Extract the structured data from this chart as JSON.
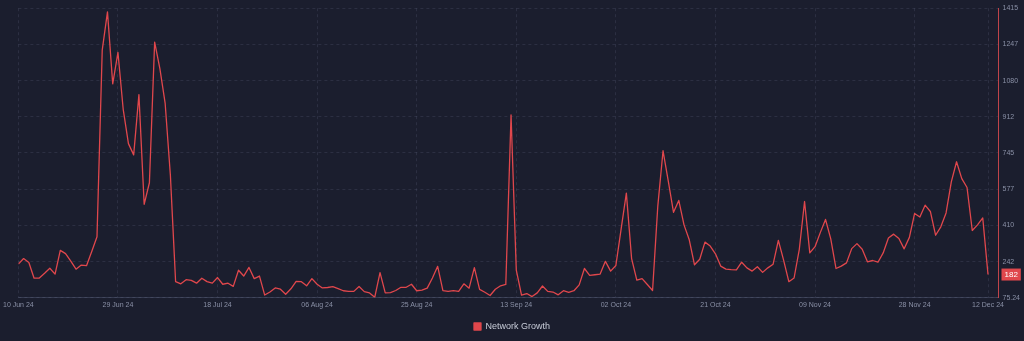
{
  "chart_data": {
    "type": "line",
    "x": [
      "2024-06-10",
      "2024-06-11",
      "2024-06-12",
      "2024-06-13",
      "2024-06-14",
      "2024-06-15",
      "2024-06-16",
      "2024-06-17",
      "2024-06-18",
      "2024-06-19",
      "2024-06-20",
      "2024-06-21",
      "2024-06-22",
      "2024-06-23",
      "2024-06-24",
      "2024-06-25",
      "2024-06-26",
      "2024-06-27",
      "2024-06-28",
      "2024-06-29",
      "2024-06-30",
      "2024-07-01",
      "2024-07-02",
      "2024-07-03",
      "2024-07-04",
      "2024-07-05",
      "2024-07-06",
      "2024-07-07",
      "2024-07-08",
      "2024-07-09",
      "2024-07-10",
      "2024-07-11",
      "2024-07-12",
      "2024-07-13",
      "2024-07-14",
      "2024-07-15",
      "2024-07-16",
      "2024-07-17",
      "2024-07-18",
      "2024-07-19",
      "2024-07-20",
      "2024-07-21",
      "2024-07-22",
      "2024-07-23",
      "2024-07-24",
      "2024-07-25",
      "2024-07-26",
      "2024-07-27",
      "2024-07-28",
      "2024-07-29",
      "2024-07-30",
      "2024-07-31",
      "2024-08-01",
      "2024-08-02",
      "2024-08-03",
      "2024-08-04",
      "2024-08-05",
      "2024-08-06",
      "2024-08-07",
      "2024-08-08",
      "2024-08-09",
      "2024-08-10",
      "2024-08-11",
      "2024-08-12",
      "2024-08-13",
      "2024-08-14",
      "2024-08-15",
      "2024-08-16",
      "2024-08-17",
      "2024-08-18",
      "2024-08-19",
      "2024-08-20",
      "2024-08-21",
      "2024-08-22",
      "2024-08-23",
      "2024-08-24",
      "2024-08-25",
      "2024-08-26",
      "2024-08-27",
      "2024-08-28",
      "2024-08-29",
      "2024-08-30",
      "2024-08-31",
      "2024-09-01",
      "2024-09-02",
      "2024-09-03",
      "2024-09-04",
      "2024-09-05",
      "2024-09-06",
      "2024-09-07",
      "2024-09-08",
      "2024-09-09",
      "2024-09-10",
      "2024-09-11",
      "2024-09-12",
      "2024-09-13",
      "2024-09-14",
      "2024-09-15",
      "2024-09-16",
      "2024-09-17",
      "2024-09-18",
      "2024-09-19",
      "2024-09-20",
      "2024-09-21",
      "2024-09-22",
      "2024-09-23",
      "2024-09-24",
      "2024-09-25",
      "2024-09-26",
      "2024-09-27",
      "2024-09-28",
      "2024-09-29",
      "2024-09-30",
      "2024-10-01",
      "2024-10-02",
      "2024-10-03",
      "2024-10-04",
      "2024-10-05",
      "2024-10-06",
      "2024-10-07",
      "2024-10-08",
      "2024-10-09",
      "2024-10-10",
      "2024-10-11",
      "2024-10-12",
      "2024-10-13",
      "2024-10-14",
      "2024-10-15",
      "2024-10-16",
      "2024-10-17",
      "2024-10-18",
      "2024-10-19",
      "2024-10-20",
      "2024-10-21",
      "2024-10-22",
      "2024-10-23",
      "2024-10-24",
      "2024-10-25",
      "2024-10-26",
      "2024-10-27",
      "2024-10-28",
      "2024-10-29",
      "2024-10-30",
      "2024-10-31",
      "2024-11-01",
      "2024-11-02",
      "2024-11-03",
      "2024-11-04",
      "2024-11-05",
      "2024-11-06",
      "2024-11-07",
      "2024-11-08",
      "2024-11-09",
      "2024-11-10",
      "2024-11-11",
      "2024-11-12",
      "2024-11-13",
      "2024-11-14",
      "2024-11-15",
      "2024-11-16",
      "2024-11-17",
      "2024-11-18",
      "2024-11-19",
      "2024-11-20",
      "2024-11-21",
      "2024-11-22",
      "2024-11-23",
      "2024-11-24",
      "2024-11-25",
      "2024-11-26",
      "2024-11-27",
      "2024-11-28",
      "2024-11-29",
      "2024-11-30",
      "2024-12-01",
      "2024-12-02",
      "2024-12-03",
      "2024-12-04",
      "2024-12-05",
      "2024-12-06",
      "2024-12-07",
      "2024-12-08",
      "2024-12-09",
      "2024-12-10",
      "2024-12-11",
      "2024-12-12"
    ],
    "series": [
      {
        "name": "Network Growth",
        "color": "#e0474c",
        "values": [
          231,
          256,
          238,
          165,
          166,
          188,
          211,
          184,
          294,
          279,
          244,
          207,
          226,
          223,
          289,
          357,
          1221,
          1398,
          1065,
          1210,
          947,
          788,
          736,
          1015,
          507,
          607,
          1258,
          1135,
          976,
          643,
          149,
          139,
          158,
          155,
          142,
          165,
          149,
          142,
          168,
          137,
          142,
          127,
          202,
          175,
          215,
          163,
          175,
          87,
          101,
          120,
          114,
          91,
          116,
          150,
          149,
          130,
          163,
          137,
          120,
          122,
          126,
          117,
          107,
          104,
          104,
          127,
          103,
          97,
          77,
          191,
          97,
          98,
          108,
          123,
          123,
          137,
          107,
          110,
          119,
          166,
          220,
          108,
          104,
          108,
          104,
          139,
          119,
          214,
          113,
          100,
          85,
          114,
          130,
          136,
          921,
          202,
          87,
          94,
          80,
          97,
          129,
          104,
          101,
          88,
          107,
          100,
          107,
          134,
          210,
          178,
          181,
          184,
          243,
          198,
          224,
          392,
          559,
          256,
          156,
          163,
          136,
          108,
          499,
          755,
          614,
          470,
          525,
          412,
          343,
          227,
          253,
          332,
          314,
          278,
          221,
          207,
          205,
          204,
          239,
          213,
          198,
          218,
          192,
          213,
          230,
          340,
          249,
          149,
          166,
          299,
          520,
          282,
          311,
          376,
          437,
          347,
          210,
          221,
          236,
          302,
          325,
          299,
          241,
          247,
          239,
          282,
          351,
          369,
          349,
          301,
          354,
          465,
          448,
          503,
          474,
          364,
          403,
          467,
          611,
          704,
          626,
          585,
          386,
          412,
          444,
          182
        ]
      }
    ],
    "xlim": [
      "2024-06-10",
      "2024-12-14"
    ],
    "xticks": [
      {
        "value": "2024-06-10",
        "label": "10 Jun 24"
      },
      {
        "value": "2024-06-29",
        "label": "29 Jun 24"
      },
      {
        "value": "2024-07-18",
        "label": "18 Jul 24"
      },
      {
        "value": "2024-08-06",
        "label": "06 Aug 24"
      },
      {
        "value": "2024-08-25",
        "label": "25 Aug 24"
      },
      {
        "value": "2024-09-13",
        "label": "13 Sep 24"
      },
      {
        "value": "2024-10-02",
        "label": "02 Oct 24"
      },
      {
        "value": "2024-10-21",
        "label": "21 Oct 24"
      },
      {
        "value": "2024-11-09",
        "label": "09 Nov 24"
      },
      {
        "value": "2024-11-28",
        "label": "28 Nov 24"
      },
      {
        "value": "2024-12-12",
        "label": "12 Dec 24"
      }
    ],
    "ylim": [
      75.24,
      1415
    ],
    "yticks": [
      75.24,
      242,
      410,
      577,
      745,
      912,
      1080,
      1247,
      1415
    ],
    "grid": true,
    "legend": "bottom",
    "marker": "none",
    "line_style": "solid",
    "annotations": [
      {
        "text": "182",
        "y": 182
      }
    ]
  }
}
